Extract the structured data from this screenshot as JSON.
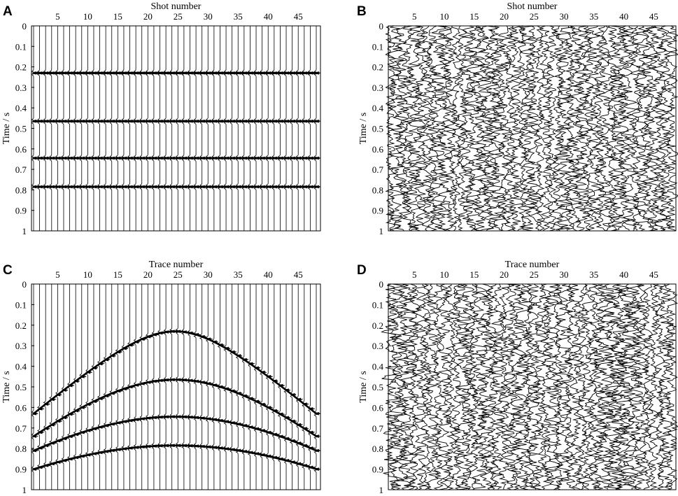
{
  "chart_data": [
    {
      "panel": "A",
      "type": "seismic-wiggle",
      "xlabel": "Shot number",
      "ylabel": "Time / s",
      "xticks": [
        5,
        10,
        15,
        20,
        25,
        30,
        35,
        40,
        45
      ],
      "yticks": [
        "0",
        "0.1",
        "0.2",
        "0.3",
        "0.4",
        "0.5",
        "0.6",
        "0.7",
        "0.8",
        "0.9",
        "1"
      ],
      "xlim": [
        1,
        48
      ],
      "ylim": [
        0,
        1
      ],
      "num_traces": 48,
      "content": "reflections",
      "reflector_times": [
        0.23,
        0.465,
        0.645,
        0.785
      ],
      "moveout": "flat"
    },
    {
      "panel": "B",
      "type": "seismic-wiggle",
      "xlabel": "Shot number",
      "ylabel": "Time / s",
      "xticks": [
        5,
        10,
        15,
        20,
        25,
        30,
        35,
        40,
        45
      ],
      "yticks": [
        "0",
        "0.1",
        "0.2",
        "0.3",
        "0.4",
        "0.5",
        "0.6",
        "0.7",
        "0.8",
        "0.9",
        "1"
      ],
      "xlim": [
        1,
        48
      ],
      "ylim": [
        0,
        1
      ],
      "num_traces": 48,
      "content": "random-noise"
    },
    {
      "panel": "C",
      "type": "seismic-wiggle",
      "xlabel": "Trace number",
      "ylabel": "Time / s",
      "xticks": [
        5,
        10,
        15,
        20,
        25,
        30,
        35,
        40,
        45
      ],
      "yticks": [
        "0",
        "0.1",
        "0.2",
        "0.3",
        "0.4",
        "0.5",
        "0.6",
        "0.7",
        "0.8",
        "0.9",
        "1"
      ],
      "xlim": [
        1,
        48
      ],
      "ylim": [
        0,
        1
      ],
      "num_traces": 48,
      "content": "reflections",
      "reflector_apex_times": [
        0.23,
        0.465,
        0.645,
        0.785
      ],
      "apex_trace": 24.5,
      "edge_trace_times": [
        0.63,
        0.74,
        0.81,
        0.9
      ],
      "moveout": "hyperbolic"
    },
    {
      "panel": "D",
      "type": "seismic-wiggle",
      "xlabel": "Trace number",
      "ylabel": "Time / s",
      "xticks": [
        5,
        10,
        15,
        20,
        25,
        30,
        35,
        40,
        45
      ],
      "yticks": [
        "0",
        "0.1",
        "0.2",
        "0.3",
        "0.4",
        "0.5",
        "0.6",
        "0.7",
        "0.8",
        "0.9",
        "1"
      ],
      "xlim": [
        1,
        48
      ],
      "ylim": [
        0,
        1
      ],
      "num_traces": 48,
      "content": "random-noise"
    }
  ]
}
